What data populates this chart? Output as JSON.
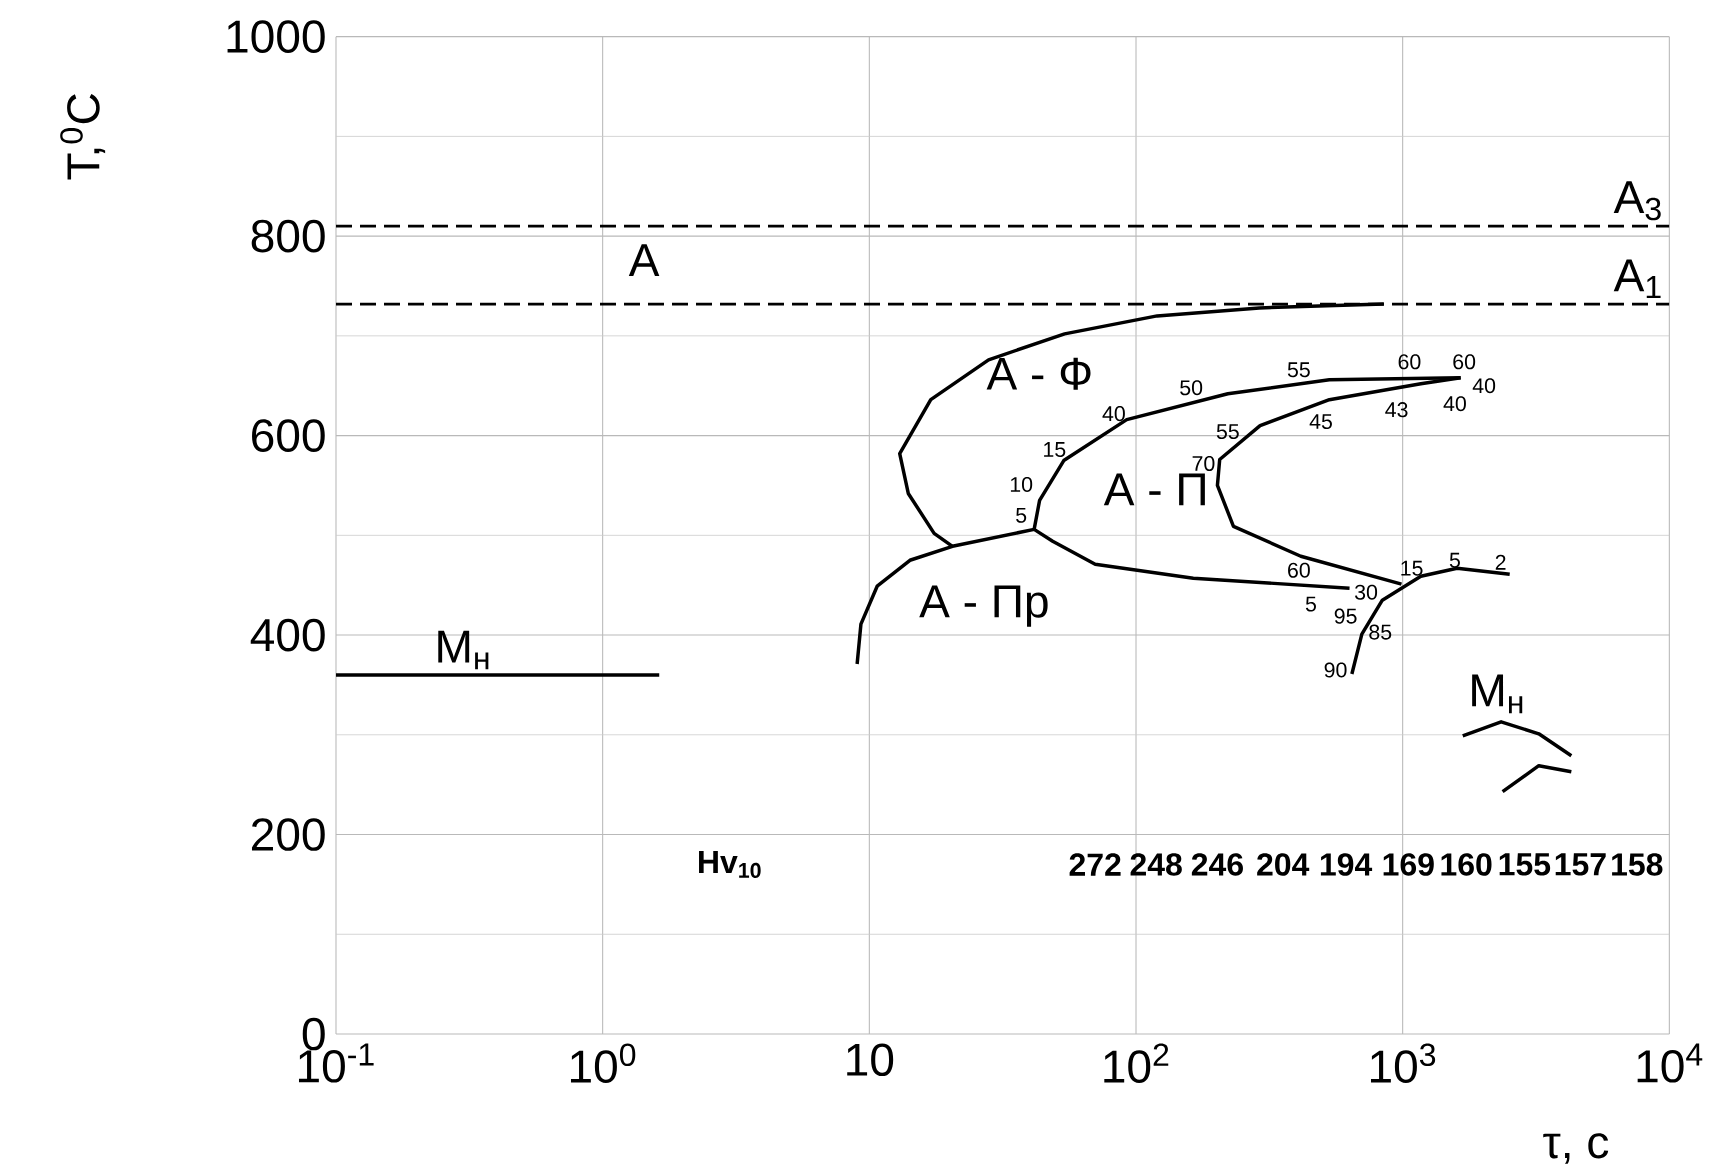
{
  "chart_data": {
    "type": "line",
    "xlabel": "τ, с",
    "ylabel": "T,$^{0}$C",
    "xlim": [
      0.1,
      10000
    ],
    "ylim": [
      0,
      1000
    ],
    "xticks": [
      {
        "value": 0.1,
        "label": "10$^{-1}$"
      },
      {
        "value": 1,
        "label": "10$^{0}$"
      },
      {
        "value": 10,
        "label": "10"
      },
      {
        "value": 100,
        "label": "10$^{2}$"
      },
      {
        "value": 1000,
        "label": "10$^{3}$"
      },
      {
        "value": 10000,
        "label": "10$^{4}$"
      }
    ],
    "yticks": [
      0,
      200,
      400,
      600,
      800,
      1000
    ],
    "log": "x",
    "grid": true,
    "marker": "none",
    "line_style": "solid",
    "ref_lines": [
      {
        "axis": "y",
        "value": 810,
        "label": "A$_{3}$",
        "color": "#000000",
        "line_style": "dashed"
      },
      {
        "axis": "y",
        "value": 732,
        "label": "A$_{1}$",
        "color": "#000000",
        "line_style": "dashed"
      }
    ],
    "series": [
      {
        "color": "#000000",
        "x": [
          850,
          290,
          120,
          54,
          28,
          17,
          13,
          14,
          17.5,
          20.5
        ],
        "values": [
          732,
          728,
          720,
          702,
          676,
          636,
          582,
          542,
          502,
          489
        ]
      },
      {
        "color": "#000000",
        "x": [
          9.0,
          9.3,
          10.7,
          14.2,
          20.5,
          41.5
        ],
        "values": [
          371,
          411,
          449,
          475,
          489,
          506
        ]
      },
      {
        "color": "#000000",
        "x": [
          632,
          164,
          70.3,
          48.7,
          41.5,
          43.5,
          53.6,
          92.3,
          221,
          531,
          1650
        ],
        "values": [
          447,
          457,
          471,
          494,
          506,
          535,
          575,
          616,
          642,
          656,
          658
        ]
      },
      {
        "color": "#000000",
        "x": [
          1650,
          1170,
          531,
          292,
          206,
          202,
          232,
          415,
          990
        ],
        "values": [
          658,
          652,
          636,
          610,
          576,
          550,
          509,
          479,
          451
        ]
      },
      {
        "color": "#000000",
        "x": [
          645,
          703,
          839,
          1170,
          1600,
          2520
        ],
        "values": [
          361,
          401,
          435,
          459,
          467,
          461
        ]
      },
      {
        "color": "#000000",
        "x": [
          1680,
          2340,
          3240,
          4290
        ],
        "values": [
          299,
          313,
          301,
          279
        ]
      },
      {
        "color": "#000000",
        "x": [
          2370,
          3240,
          4290
        ],
        "values": [
          243,
          269,
          263
        ]
      },
      {
        "color": "#000000",
        "x": [
          0.1,
          1.63
        ],
        "values": [
          360,
          360
        ]
      }
    ],
    "annotations": [
      "A",
      "А - Ф",
      "А - П",
      "А - Пр",
      "М$_{н}$",
      "М$_{н}$",
      "55",
      "50",
      "40",
      "15",
      "10",
      "5",
      "60",
      "60",
      "40",
      "40",
      "43",
      "45",
      "55",
      "70",
      "60",
      "5",
      "30",
      "95",
      "85",
      "90",
      "15",
      "5",
      "2",
      "Hv$_{10}$",
      "272",
      "248",
      "246",
      "204",
      "194",
      "169",
      "160",
      "155",
      "157",
      "158"
    ]
  }
}
